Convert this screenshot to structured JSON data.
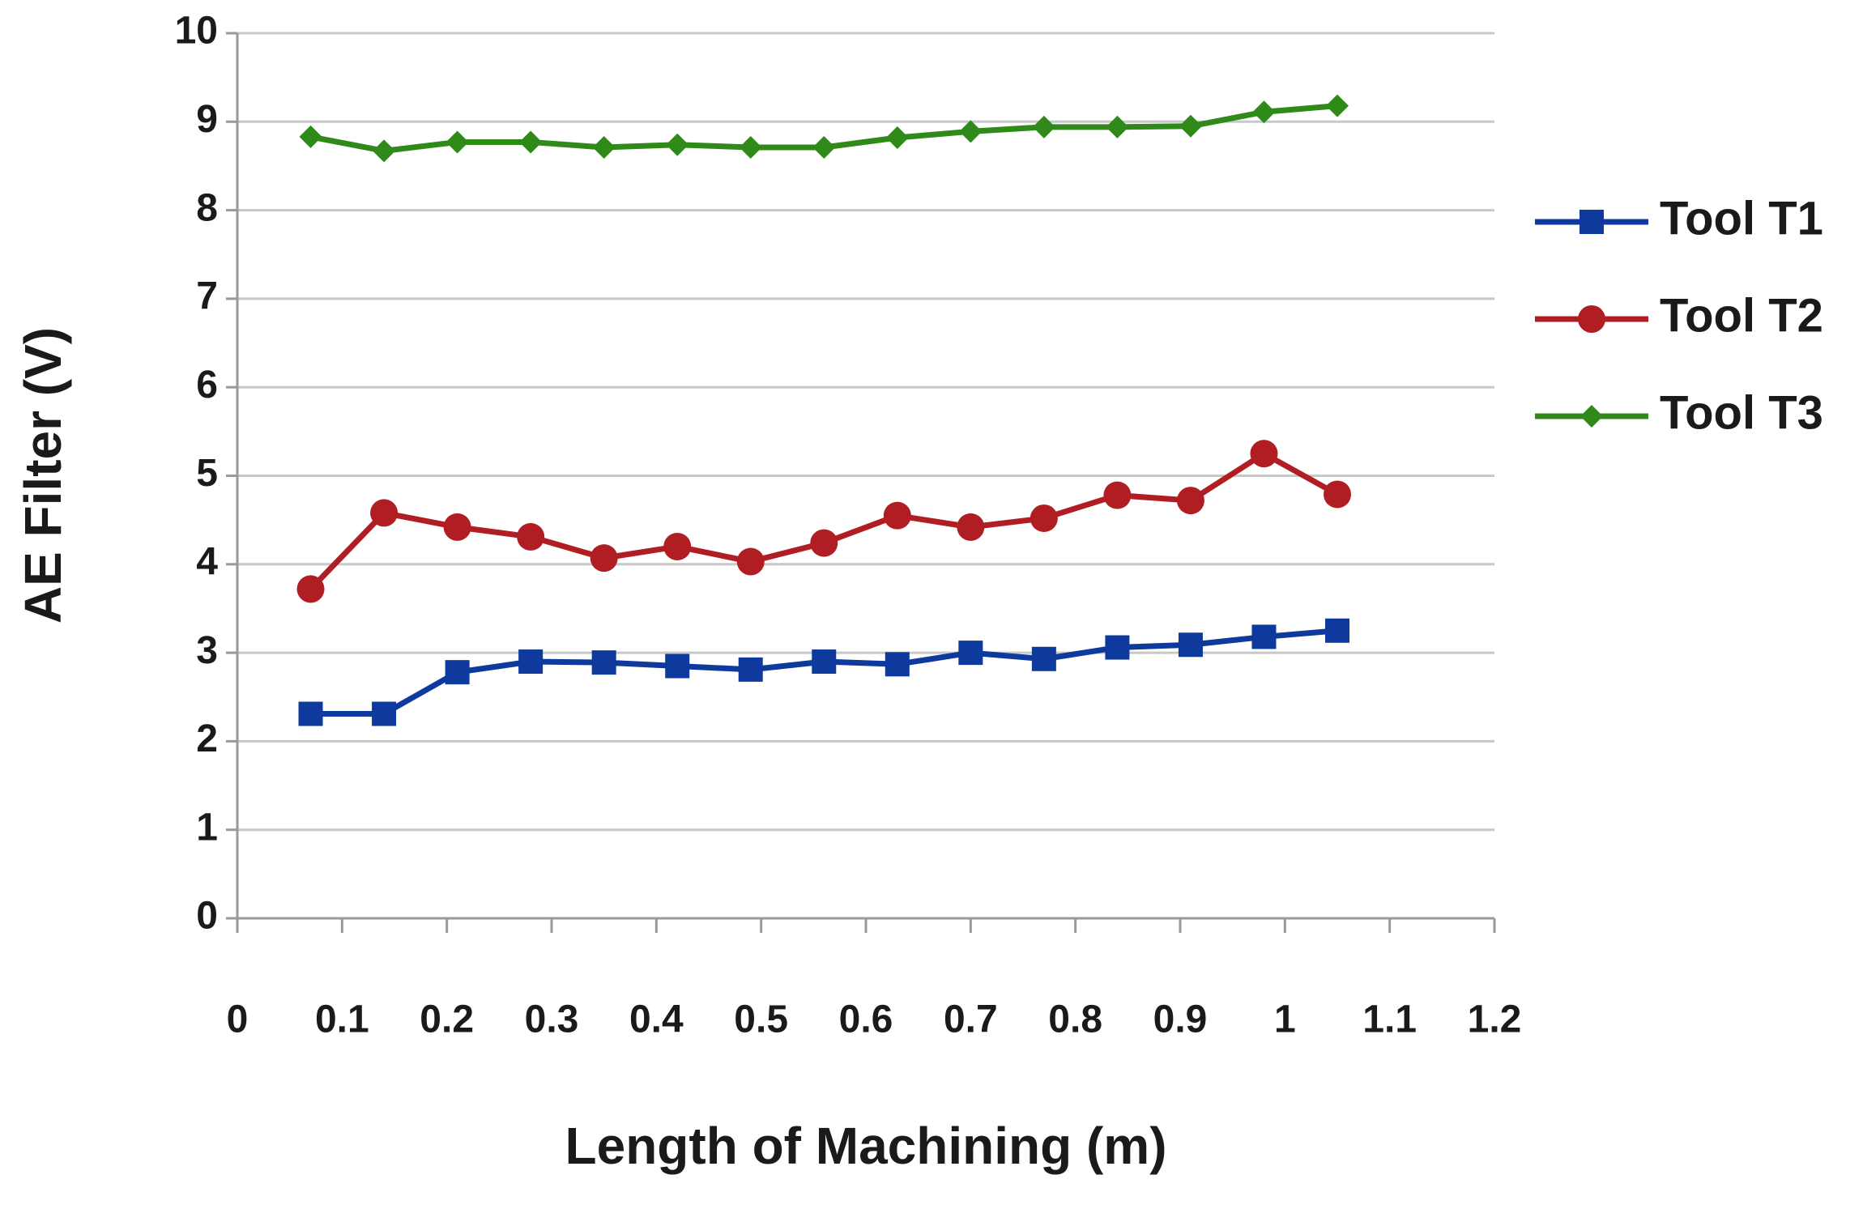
{
  "chart_data": {
    "type": "line",
    "x_label": "Length of Machining (m)",
    "y_label": "AE Filter (V)",
    "x": [
      0.07,
      0.14,
      0.21,
      0.28,
      0.35,
      0.42,
      0.49,
      0.56,
      0.63,
      0.7,
      0.77,
      0.84,
      0.91,
      0.98,
      1.05
    ],
    "series": [
      {
        "name": "Tool T1",
        "color": "#0d3a9c",
        "marker": "square",
        "values": [
          2.31,
          2.31,
          2.78,
          2.9,
          2.89,
          2.85,
          2.81,
          2.9,
          2.87,
          3.0,
          2.93,
          3.06,
          3.09,
          3.18,
          3.25
        ]
      },
      {
        "name": "Tool T2",
        "color": "#b01e23",
        "marker": "circle",
        "values": [
          3.72,
          4.58,
          4.42,
          4.31,
          4.07,
          4.2,
          4.03,
          4.24,
          4.55,
          4.42,
          4.52,
          4.78,
          4.72,
          5.25,
          4.79
        ]
      },
      {
        "name": "Tool T3",
        "color": "#2f8a1a",
        "marker": "diamond",
        "values": [
          8.83,
          8.67,
          8.77,
          8.77,
          8.71,
          8.74,
          8.71,
          8.71,
          8.82,
          8.89,
          8.94,
          8.94,
          8.95,
          9.11,
          9.18
        ]
      }
    ],
    "xlim": [
      0,
      1.2
    ],
    "xticks": [
      0,
      0.1,
      0.2,
      0.3,
      0.4,
      0.5,
      0.6,
      0.7,
      0.8,
      0.9,
      1,
      1.1,
      1.2
    ],
    "ylim": [
      0,
      10
    ],
    "yticks": [
      0,
      1,
      2,
      3,
      4,
      5,
      6,
      7,
      8,
      9,
      10
    ],
    "grid": true,
    "legend": "right"
  }
}
